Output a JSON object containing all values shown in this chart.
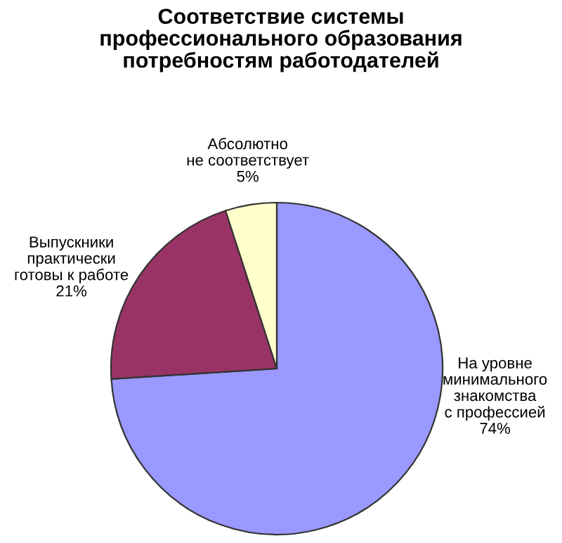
{
  "chart_data": {
    "type": "pie",
    "title": "Соответствие системы\nпрофессионального образования\nпотребностям работодателей",
    "categories": [
      "На уровне\nминимального\nзнакомства\nс профессией",
      "Выпускники\nпрактически\nготовы к работе",
      "Абсолютно\nне соответствует"
    ],
    "values": [
      74,
      21,
      5
    ],
    "value_labels": [
      "74%",
      "21%",
      "5%"
    ],
    "colors": [
      "#9999ff",
      "#993366",
      "#ffffcc"
    ],
    "data_labels": true,
    "legend": false
  }
}
